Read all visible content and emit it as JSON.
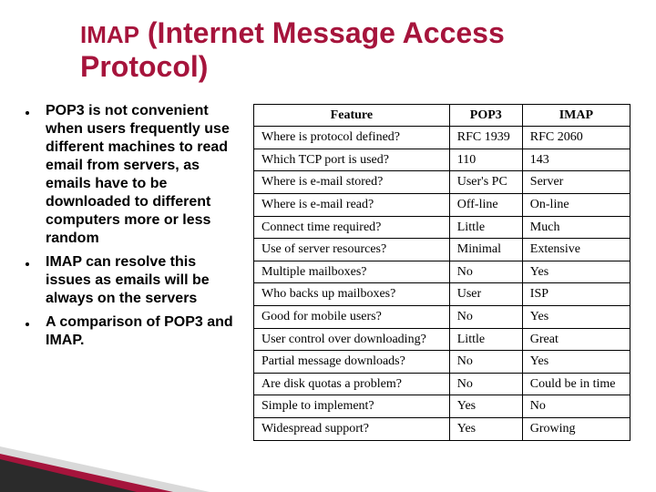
{
  "title_prefix": "IMAP",
  "title_rest": " (Internet Message Access Protocol)",
  "colors": {
    "accent": "#a6143c",
    "text": "#000000",
    "corner_dark": "#2b2b2b",
    "corner_gray": "#d9d9d9",
    "background": "#ffffff",
    "table_border": "#000000"
  },
  "typography": {
    "title_fontsize": 32,
    "title_prefix_fontsize": 26,
    "bullet_fontsize": 16,
    "table_fontsize": 14,
    "title_font": "Trebuchet MS",
    "table_font": "Times New Roman"
  },
  "bullets": [
    "POP3 is not convenient when users frequently use different machines to read email from servers, as emails have to be downloaded to different computers more or less random",
    "IMAP can resolve this issues as emails will be always on the servers",
    "A comparison of POP3 and IMAP."
  ],
  "table": {
    "type": "table",
    "columns": [
      "Feature",
      "POP3",
      "IMAP"
    ],
    "rows": [
      [
        "Where is protocol defined?",
        "RFC 1939",
        "RFC 2060"
      ],
      [
        "Which TCP port is used?",
        "110",
        "143"
      ],
      [
        "Where is e-mail stored?",
        "User's PC",
        "Server"
      ],
      [
        "Where is e-mail read?",
        "Off-line",
        "On-line"
      ],
      [
        "Connect time required?",
        "Little",
        "Much"
      ],
      [
        "Use of server resources?",
        "Minimal",
        "Extensive"
      ],
      [
        "Multiple mailboxes?",
        "No",
        "Yes"
      ],
      [
        "Who backs up mailboxes?",
        "User",
        "ISP"
      ],
      [
        "Good for mobile users?",
        "No",
        "Yes"
      ],
      [
        "User control over downloading?",
        "Little",
        "Great"
      ],
      [
        "Partial message downloads?",
        "No",
        "Yes"
      ],
      [
        "Are disk quotas a problem?",
        "No",
        "Could be in time"
      ],
      [
        "Simple to implement?",
        "Yes",
        "No"
      ],
      [
        "Widespread support?",
        "Yes",
        "Growing"
      ]
    ],
    "col_widths_pct": [
      52,
      22,
      26
    ]
  }
}
